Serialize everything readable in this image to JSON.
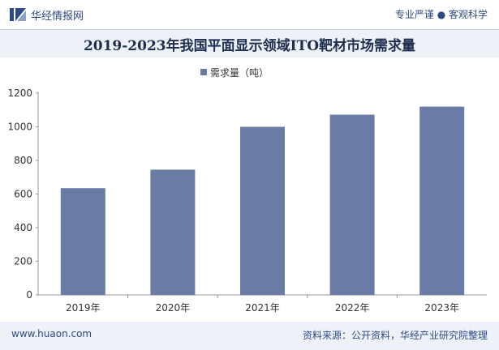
{
  "header": {
    "brand": "华经情报网",
    "slogan": "专业严谨 ● 客观科学",
    "logo_icon": "huajing-logo-icon"
  },
  "title": "2019-2023年我国平面显示领域ITO靶材市场需求量",
  "footer": {
    "site": "www.huaon.com",
    "source": "资料来源：公开资料，华经产业研究院整理"
  },
  "colors": {
    "bar": "#6a7ba6",
    "accent": "#2d4a85",
    "band": "#eef1f7"
  },
  "chart_data": {
    "type": "bar",
    "categories": [
      "2019年",
      "2020年",
      "2021年",
      "2022年",
      "2023年"
    ],
    "series": [
      {
        "name": "需求量（吨）",
        "values": [
          635,
          745,
          1000,
          1072,
          1120
        ]
      }
    ],
    "ylim": [
      0,
      1200
    ],
    "yticks": [
      0,
      200,
      400,
      600,
      800,
      1000,
      1200
    ],
    "legend": "top-center",
    "grid": false
  }
}
